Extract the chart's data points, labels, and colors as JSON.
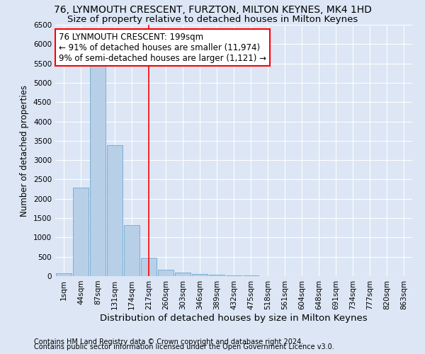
{
  "title": "76, LYNMOUTH CRESCENT, FURZTON, MILTON KEYNES, MK4 1HD",
  "subtitle": "Size of property relative to detached houses in Milton Keynes",
  "xlabel": "Distribution of detached houses by size in Milton Keynes",
  "ylabel": "Number of detached properties",
  "footnote1": "Contains HM Land Registry data © Crown copyright and database right 2024.",
  "footnote2": "Contains public sector information licensed under the Open Government Licence v3.0.",
  "categories": [
    "1sqm",
    "44sqm",
    "87sqm",
    "131sqm",
    "174sqm",
    "217sqm",
    "260sqm",
    "303sqm",
    "346sqm",
    "389sqm",
    "432sqm",
    "475sqm",
    "518sqm",
    "561sqm",
    "604sqm",
    "648sqm",
    "691sqm",
    "734sqm",
    "777sqm",
    "820sqm",
    "863sqm"
  ],
  "values": [
    70,
    2280,
    5430,
    3380,
    1310,
    480,
    165,
    95,
    55,
    30,
    15,
    10,
    5,
    3,
    2,
    1,
    1,
    0,
    0,
    0,
    0
  ],
  "bar_color": "#b8cfe8",
  "bar_edge_color": "#6fa8d0",
  "vline_index": 5,
  "vline_color": "red",
  "annotation_text": "76 LYNMOUTH CRESCENT: 199sqm\n← 91% of detached houses are smaller (11,974)\n9% of semi-detached houses are larger (1,121) →",
  "annotation_box_color": "white",
  "annotation_box_edgecolor": "red",
  "ylim": [
    0,
    6500
  ],
  "yticks": [
    0,
    500,
    1000,
    1500,
    2000,
    2500,
    3000,
    3500,
    4000,
    4500,
    5000,
    5500,
    6000,
    6500
  ],
  "bg_color": "#dce6f5",
  "grid_color": "white",
  "title_fontsize": 10,
  "subtitle_fontsize": 9.5,
  "xlabel_fontsize": 9.5,
  "ylabel_fontsize": 8.5,
  "footnote_fontsize": 7,
  "annot_fontsize": 8.5,
  "tick_fontsize": 7.5
}
